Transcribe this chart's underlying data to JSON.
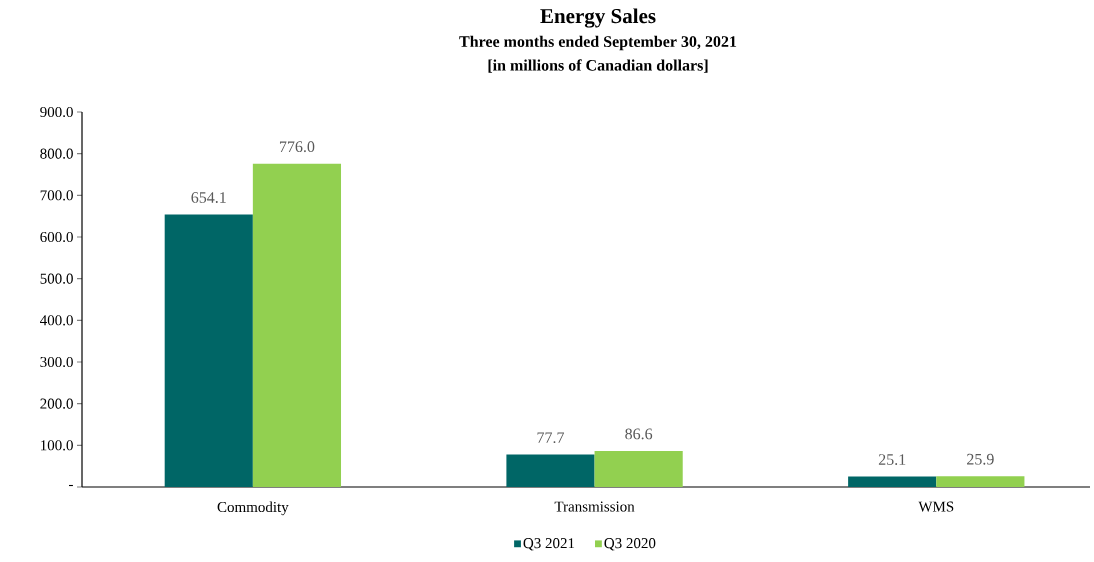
{
  "chart_data": {
    "type": "bar",
    "title": "Energy Sales",
    "subtitle": "Three months ended September 30, 2021",
    "annotations": [
      "[in millions of Canadian dollars]"
    ],
    "categories": [
      "Commodity",
      "Transmission",
      "WMS"
    ],
    "series": [
      {
        "name": "Q3 2021",
        "color": "#006666",
        "values": [
          654.1,
          77.7,
          25.1
        ],
        "value_labels": [
          "654.1",
          "77.7",
          "25.1"
        ]
      },
      {
        "name": "Q3 2020",
        "color": "#92d050",
        "values": [
          776.0,
          86.6,
          25.9
        ],
        "value_labels": [
          "776.0",
          "86.6",
          "25.9"
        ]
      }
    ],
    "ylim": [
      0,
      900
    ],
    "yticks": [
      {
        "value": 0,
        "label": "-"
      },
      {
        "value": 100,
        "label": "100.0"
      },
      {
        "value": 200,
        "label": "200.0"
      },
      {
        "value": 300,
        "label": "300.0"
      },
      {
        "value": 400,
        "label": "400.0"
      },
      {
        "value": 500,
        "label": "500.0"
      },
      {
        "value": 600,
        "label": "600.0"
      },
      {
        "value": 700,
        "label": "700.0"
      },
      {
        "value": 800,
        "label": "800.0"
      },
      {
        "value": 900,
        "label": "900.0"
      }
    ],
    "grid": false,
    "legend": "bottom"
  }
}
